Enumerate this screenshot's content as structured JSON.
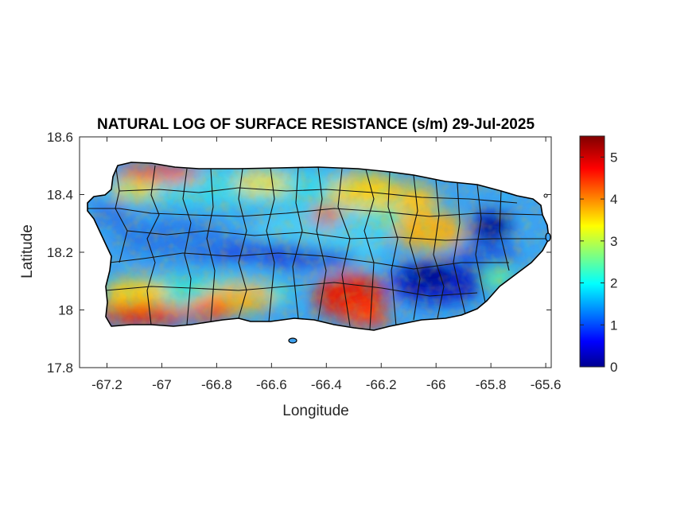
{
  "map": {
    "title": "NATURAL LOG OF SURFACE RESISTANCE (s/m) 29-Jul-2025",
    "xlabel": "Longitude",
    "ylabel": "Latitude",
    "xlim": [
      -67.3,
      -65.58
    ],
    "ylim": [
      17.8,
      18.6
    ],
    "x_ticks": [
      "-67.2",
      "-67",
      "-66.8",
      "-66.6",
      "-66.4",
      "-66.2",
      "-66",
      "-65.8",
      "-65.6"
    ],
    "y_ticks": [
      "18.6",
      "18.4",
      "18.2",
      "18",
      "17.8"
    ],
    "colorbar": {
      "colormap": "jet",
      "range": [
        0,
        5.5
      ],
      "ticks": [
        "0",
        "1",
        "2",
        "3",
        "4",
        "5"
      ]
    },
    "colors": {
      "jet_stops": [
        "#00008f",
        "#0000ff",
        "#00ffff",
        "#ffff00",
        "#ff0000",
        "#800000"
      ],
      "outline": "#000000"
    }
  }
}
